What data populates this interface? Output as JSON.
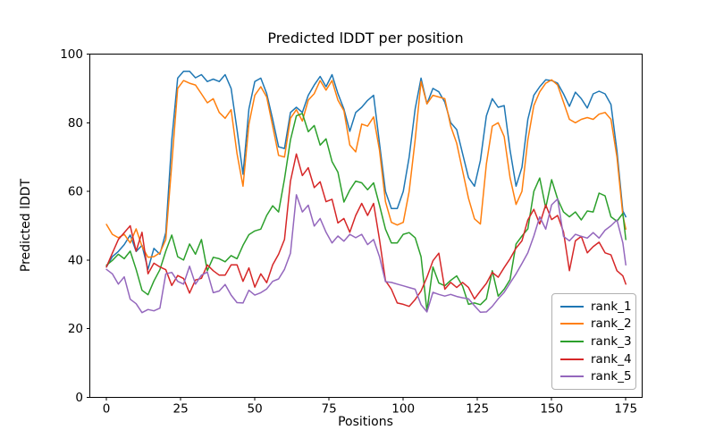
{
  "figure": {
    "title": "Predicted lDDT per position",
    "xlabel": "Positions",
    "ylabel": "Predicted lDDT",
    "background_color": "#ffffff",
    "text_color": "#000000"
  },
  "chart_data": {
    "type": "line",
    "title": "Predicted lDDT per position",
    "xlabel": "Positions",
    "ylabel": "Predicted lDDT",
    "xlim": [
      -5.6,
      180.5
    ],
    "ylim": [
      0,
      100
    ],
    "x_ticks": [
      0,
      25,
      50,
      75,
      100,
      125,
      150,
      175
    ],
    "y_ticks": [
      0,
      20,
      40,
      60,
      80,
      100
    ],
    "grid": false,
    "legend_position": "lower right",
    "x": [
      0,
      2,
      4,
      6,
      8,
      10,
      12,
      14,
      16,
      18,
      20,
      22,
      24,
      26,
      28,
      30,
      32,
      34,
      36,
      38,
      40,
      42,
      44,
      46,
      48,
      50,
      52,
      54,
      56,
      58,
      60,
      62,
      64,
      66,
      68,
      70,
      72,
      74,
      76,
      78,
      80,
      82,
      84,
      86,
      88,
      90,
      92,
      94,
      96,
      98,
      100,
      102,
      104,
      106,
      108,
      110,
      112,
      114,
      116,
      118,
      120,
      122,
      124,
      126,
      128,
      130,
      132,
      134,
      136,
      138,
      140,
      142,
      144,
      146,
      148,
      150,
      152,
      154,
      156,
      158,
      160,
      162,
      164,
      166,
      168,
      170,
      172,
      174,
      175
    ],
    "series": [
      {
        "name": "rank_1",
        "color": "#1f77b4",
        "values": [
          38,
          41,
          42.5,
          44.5,
          47.3,
          42.5,
          44.3,
          37.3,
          43.4,
          41.7,
          48,
          75,
          93,
          95,
          95,
          93.1,
          94,
          92,
          92.7,
          92,
          94,
          90,
          78,
          65,
          84,
          92,
          93,
          88.5,
          81,
          73,
          72.5,
          83,
          84.5,
          83,
          88,
          91,
          93.5,
          90.5,
          94,
          88.5,
          84,
          77.5,
          83,
          84.5,
          86.5,
          88,
          74,
          60,
          55,
          55,
          60,
          70,
          84,
          93,
          85.5,
          90,
          89,
          86,
          80,
          78,
          71,
          64,
          61.5,
          69,
          82,
          87,
          84.5,
          85,
          72,
          61.5,
          67,
          81,
          88,
          90.5,
          92.5,
          92.3,
          91.5,
          88.4,
          84.8,
          88.9,
          87,
          84.3,
          88.4,
          89.2,
          88.4,
          85.3,
          71.8,
          54.3,
          52.6
        ]
      },
      {
        "name": "rank_2",
        "color": "#ff7f0e",
        "values": [
          50.4,
          47.5,
          46.5,
          47.5,
          45,
          49.1,
          44,
          40.8,
          41,
          42.1,
          46,
          68,
          90,
          92.3,
          91.5,
          91,
          88.4,
          85.8,
          87,
          83,
          81.3,
          83.8,
          71,
          61.5,
          79.6,
          88,
          90.5,
          87.5,
          79,
          70.5,
          70,
          81.3,
          83.8,
          80.5,
          86.6,
          88.5,
          92.3,
          89.5,
          92.3,
          86.6,
          83.5,
          73.5,
          71.5,
          79.6,
          79,
          81.7,
          72,
          57,
          51,
          50.2,
          51,
          60,
          75,
          92,
          85.5,
          88,
          87.5,
          87,
          79,
          74,
          66,
          58,
          52,
          50.5,
          68,
          79,
          80,
          76,
          64,
          56.2,
          60,
          75,
          85,
          89,
          91.5,
          92.5,
          91,
          86,
          81,
          80,
          81,
          81.5,
          81,
          82.5,
          83,
          81,
          70,
          53,
          49
        ]
      },
      {
        "name": "rank_3",
        "color": "#2ca02c",
        "values": [
          38.5,
          39.9,
          41.7,
          40.4,
          42.6,
          37.3,
          31.2,
          29.9,
          33.9,
          37.2,
          42.6,
          47.3,
          41,
          40,
          44.7,
          41.7,
          46,
          36.9,
          40.8,
          40.4,
          39.5,
          41.3,
          40.4,
          44.3,
          47.4,
          48.5,
          49,
          53,
          55.8,
          54,
          63.6,
          75,
          82,
          82.7,
          77.4,
          79.2,
          73.5,
          75.3,
          68.7,
          65.6,
          56.9,
          60.4,
          63,
          62.5,
          60.5,
          62.5,
          56,
          49,
          45,
          45,
          47.5,
          48,
          46.5,
          41,
          25.1,
          38,
          33.3,
          32.5,
          34.1,
          35.4,
          32.4,
          27.1,
          27.5,
          27,
          28.7,
          36.9,
          29.5,
          31.5,
          34.3,
          44.7,
          47,
          49.1,
          60,
          63.9,
          55.2,
          63.4,
          57.8,
          54,
          52.6,
          54,
          51.7,
          54.3,
          54,
          59.5,
          58.7,
          52.6,
          51.3,
          53.6,
          46
        ]
      },
      {
        "name": "rank_4",
        "color": "#d62728",
        "values": [
          38,
          42,
          46,
          48,
          50,
          42.6,
          48.1,
          36,
          39.1,
          38,
          37.2,
          32.6,
          35.5,
          34.6,
          30.4,
          34.2,
          34.7,
          38.6,
          36.9,
          35.6,
          35.6,
          38.6,
          38.6,
          33.8,
          37.7,
          32.1,
          36,
          33.4,
          38.6,
          41.7,
          46,
          63,
          70.9,
          64.6,
          66.9,
          61.1,
          62.8,
          57,
          57.7,
          50.8,
          52.1,
          48.1,
          53,
          56.5,
          53,
          56.5,
          46,
          34,
          31.5,
          27.5,
          27.1,
          26.5,
          28.5,
          31,
          35,
          39.8,
          42,
          31.5,
          33.5,
          32,
          33.5,
          32,
          28.7,
          31,
          33.2,
          36.4,
          35,
          37.8,
          40.4,
          43.5,
          45.6,
          51.7,
          54.8,
          50.5,
          56.1,
          51.8,
          53,
          48.2,
          36.9,
          45.6,
          46.9,
          42.1,
          43.9,
          45.2,
          42.1,
          41.5,
          36.9,
          35.4,
          33
        ]
      },
      {
        "name": "rank_5",
        "color": "#9467bd",
        "values": [
          37.3,
          36,
          33,
          35.1,
          28.6,
          27.3,
          24.7,
          25.6,
          25.2,
          26,
          36,
          36.4,
          33.8,
          33,
          38.2,
          33,
          35.6,
          36.5,
          30.5,
          31,
          32.9,
          29.8,
          27.6,
          27.5,
          31.2,
          29.8,
          30.5,
          31.6,
          33.8,
          34.5,
          37.3,
          42,
          59,
          54,
          56,
          49.9,
          52.1,
          48.1,
          45,
          47,
          45.5,
          47.5,
          46.5,
          47.5,
          44.5,
          46,
          41,
          33.7,
          33.5,
          33,
          32.5,
          32,
          31.5,
          27,
          24.9,
          30.6,
          30,
          29.5,
          30,
          29.4,
          29,
          28.7,
          26.7,
          24.8,
          24.9,
          26.5,
          28.7,
          30.6,
          33.3,
          36,
          39,
          42.1,
          47,
          52.6,
          49,
          56.1,
          57.8,
          46.9,
          45.6,
          47.5,
          46.9,
          46.4,
          48,
          46.4,
          48.7,
          50,
          51.7,
          45,
          38.6
        ]
      }
    ]
  }
}
